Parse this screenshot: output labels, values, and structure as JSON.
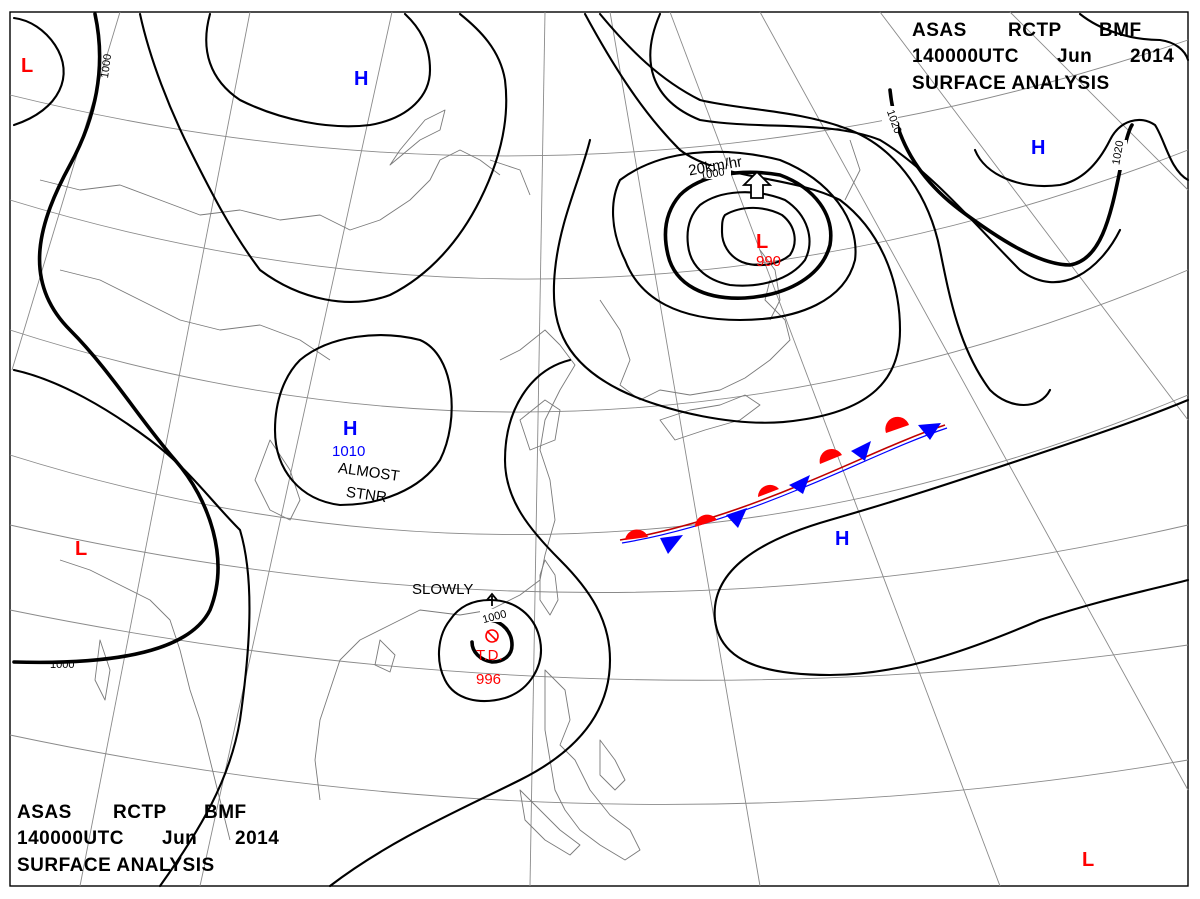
{
  "title_top": {
    "line1": [
      "ASAS",
      "RCTP",
      "BMF"
    ],
    "line2": [
      "140000UTC",
      "Jun",
      "2014"
    ],
    "line3": "SURFACE  ANALYSIS"
  },
  "title_bottom": {
    "line1": [
      "ASAS",
      "RCTP",
      "BMF"
    ],
    "line2": [
      "140000UTC",
      "Jun",
      "2014"
    ],
    "line3": "SURFACE  ANALYSIS"
  },
  "isobar_labels": [
    "1000",
    "1000",
    "1000",
    "1000",
    "1020",
    "1020"
  ],
  "pressure_centers": [
    {
      "type": "H",
      "value": ""
    },
    {
      "type": "H",
      "value": "1010"
    },
    {
      "type": "H",
      "value": ""
    },
    {
      "type": "H",
      "value": ""
    },
    {
      "type": "L",
      "value": ""
    },
    {
      "type": "L",
      "value": ""
    },
    {
      "type": "L",
      "value": "990"
    },
    {
      "type": "L",
      "value": ""
    }
  ],
  "tropical_depression": {
    "label": "T.D.",
    "value": "996",
    "motion": "SLOWLY"
  },
  "annotations": {
    "almost_stnr_1": "ALMOST",
    "almost_stnr_2": "STNR",
    "motion_speed": "20km/hr"
  },
  "colors": {
    "high": "#0000ff",
    "low": "#ff0000",
    "isobar": "#000000",
    "grid": "#8a8a8a",
    "coastline": "#7a7a7a",
    "warm_front": "#ff0000",
    "cold_front": "#0000ff"
  }
}
